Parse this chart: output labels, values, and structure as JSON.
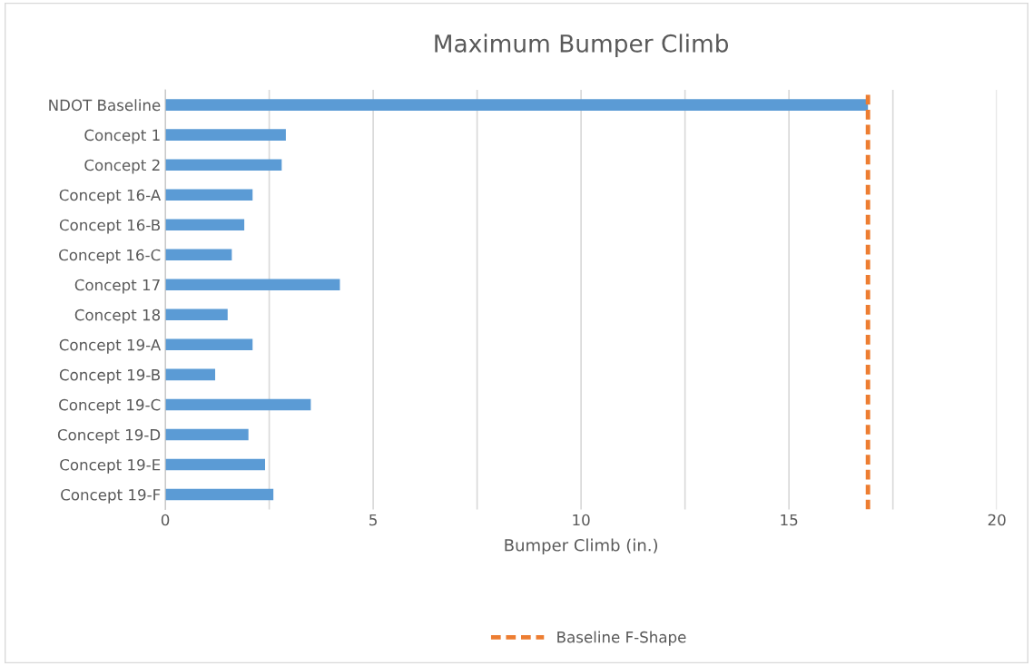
{
  "chart_data": {
    "type": "bar",
    "orientation": "horizontal",
    "title": "Maximum Bumper Climb",
    "xlabel": "Bumper Climb (in.)",
    "categories": [
      "NDOT Baseline",
      "Concept 1",
      "Concept 2",
      "Concept 16-A",
      "Concept 16-B",
      "Concept 16-C",
      "Concept 17",
      "Concept 18",
      "Concept 19-A",
      "Concept 19-B",
      "Concept 19-C",
      "Concept 19-D",
      "Concept 19-E",
      "Concept 19-F"
    ],
    "values": [
      16.9,
      2.9,
      2.8,
      2.1,
      1.9,
      1.6,
      4.2,
      1.5,
      2.1,
      1.2,
      3.5,
      2.0,
      2.4,
      2.6
    ],
    "color": "#5b9bd5",
    "xlim": [
      0,
      20
    ],
    "xticks": [
      0,
      {
        "value": 2.5,
        "label": null
      },
      5,
      {
        "value": 7.5,
        "label": null
      },
      10,
      {
        "value": 12.5,
        "label": null
      },
      15,
      {
        "value": 17.5,
        "label": null
      },
      20
    ],
    "grid": "x",
    "ref_lines": [
      {
        "axis": "x",
        "value": 16.9,
        "label": "Baseline F-Shape",
        "color": "#ed7d31",
        "line_style": "dashed"
      }
    ],
    "legend": "bottom"
  }
}
